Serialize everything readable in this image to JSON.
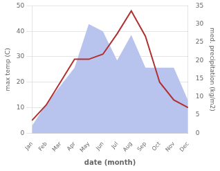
{
  "chart_data": {
    "type": "line",
    "xlabel": "date (month)",
    "ylabel": "max temp (C)",
    "y2label": "med. precipitation (kg/m2)",
    "categories": [
      "Jan",
      "Feb",
      "Mar",
      "Apr",
      "May",
      "Jun",
      "Jul",
      "Aug",
      "Sep",
      "Oct",
      "Nov",
      "Dec"
    ],
    "series": [
      {
        "type": "area",
        "color": "#b8c4ee",
        "axis": "y2",
        "values": [
          2,
          8,
          13,
          18,
          30,
          28,
          20,
          27,
          18,
          18,
          18,
          9
        ]
      },
      {
        "type": "line",
        "color": "#b03030",
        "values": [
          5,
          11,
          20,
          29,
          29,
          31,
          39,
          48,
          38,
          20,
          13,
          10
        ]
      }
    ],
    "ylim": [
      0,
      50
    ],
    "yticks": [
      0,
      10,
      20,
      30,
      40,
      50
    ],
    "y2lim": [
      0,
      35
    ],
    "y2ticks": [
      0,
      5,
      10,
      15,
      20,
      25,
      30,
      35
    ],
    "grid": true
  }
}
